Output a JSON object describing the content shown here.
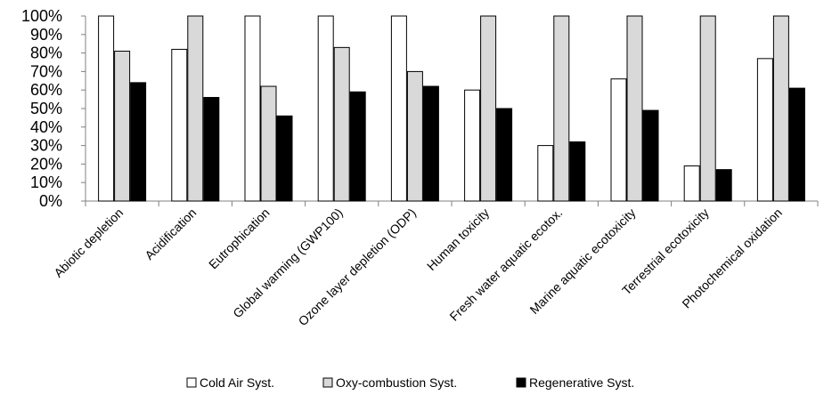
{
  "chart_data": {
    "type": "bar",
    "categories": [
      "Abiotic depletion",
      "Acidification",
      "Eutrophication",
      "Global warming (GWP100)",
      "Ozone layer depletion (ODP)",
      "Human toxicity",
      "Fresh water aquatic ecotox.",
      "Marine aquatic ecotoxicity",
      "Terrestrial ecotoxicity",
      "Photochemical oxidation"
    ],
    "series": [
      {
        "name": "Cold Air Syst.",
        "color": "#ffffff",
        "values": [
          100,
          82,
          100,
          100,
          100,
          60,
          30,
          66,
          19,
          77
        ]
      },
      {
        "name": "Oxy-combustion Syst.",
        "color": "#d9d9d9",
        "values": [
          81,
          100,
          62,
          83,
          70,
          100,
          100,
          100,
          100,
          100
        ]
      },
      {
        "name": "Regenerative Syst.",
        "color": "#000000",
        "values": [
          64,
          56,
          46,
          59,
          62,
          50,
          32,
          49,
          17,
          61
        ]
      }
    ],
    "yticks": [
      "0%",
      "10%",
      "20%",
      "30%",
      "40%",
      "50%",
      "60%",
      "70%",
      "80%",
      "90%",
      "100%"
    ],
    "ylim": [
      0,
      100
    ],
    "legend_position": "bottom",
    "grid": false
  }
}
